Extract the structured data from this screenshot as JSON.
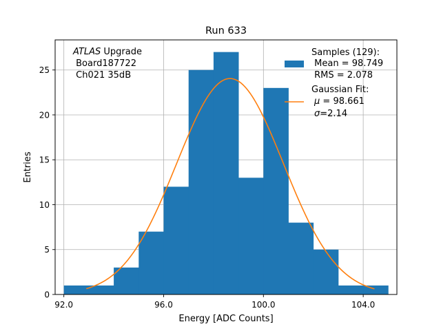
{
  "chart_data": {
    "type": "bar",
    "title": "Run 633",
    "xlabel": "Energy [ADC Counts]",
    "ylabel": "Entries",
    "xlim": [
      91.65,
      105.35
    ],
    "ylim": [
      0,
      28.35
    ],
    "xticks": [
      92,
      96,
      100,
      104
    ],
    "xtick_labels": [
      "92.0",
      "96.0",
      "100.0",
      "104.0"
    ],
    "yticks": [
      0,
      5,
      10,
      15,
      20,
      25
    ],
    "ytick_labels": [
      "0",
      "5",
      "10",
      "15",
      "20",
      "25"
    ],
    "grid": true,
    "bin_edges": [
      92.0,
      93.0,
      94.0,
      95.0,
      96.0,
      97.0,
      98.0,
      99.0,
      100.0,
      101.0,
      102.0,
      103.0,
      104.0,
      105.0
    ],
    "counts": [
      1,
      1,
      3,
      7,
      12,
      25,
      27,
      13,
      23,
      8,
      5,
      1,
      1
    ],
    "fit": {
      "type": "gaussian",
      "amplitude": 24.05,
      "mu": 98.661,
      "sigma": 2.14,
      "x_range": [
        92.9,
        104.45
      ]
    },
    "annotation": {
      "italic": "ATLAS",
      "rest": " Upgrade",
      "line2": " Board187722",
      "line3": " Ch021 35dB"
    },
    "legend": {
      "position": "upper right",
      "samples": {
        "line1": "Samples (129):",
        "line2": " Mean = 98.749",
        "line3": " RMS = 2.078"
      },
      "fit": {
        "line1": "Gaussian Fit:",
        "line2_sym": "μ",
        "line2_rest": " = 98.661",
        "line3_sym": "σ",
        "line3_rest": "=2.14"
      }
    },
    "colors": {
      "bar": "#1f77b4",
      "fit": "#ff7f0e",
      "grid": "#b0b0b0"
    }
  }
}
